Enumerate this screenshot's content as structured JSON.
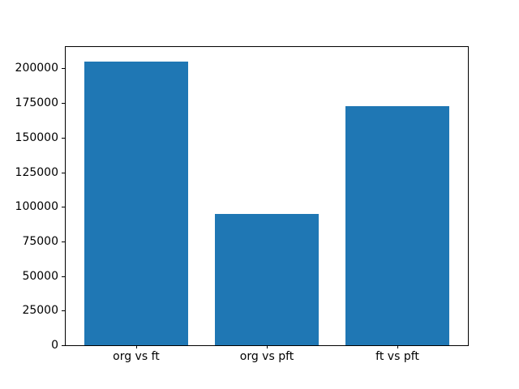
{
  "chart_data": {
    "type": "bar",
    "title": "",
    "xlabel": "",
    "ylabel": "",
    "categories": [
      "org vs ft",
      "org vs pft",
      "ft vs pft"
    ],
    "values": [
      205000,
      95000,
      173000
    ],
    "yticks": [
      0,
      25000,
      50000,
      75000,
      100000,
      125000,
      150000,
      175000,
      200000
    ],
    "ylim": [
      0,
      215500
    ],
    "bar_color": "#1f77b4",
    "axis_color": "#000000",
    "text_color": "#000000",
    "background_color": "#ffffff",
    "grid": false,
    "legend": "none",
    "bar_width_fraction": 0.8,
    "x_margin_fraction": 0.05
  }
}
